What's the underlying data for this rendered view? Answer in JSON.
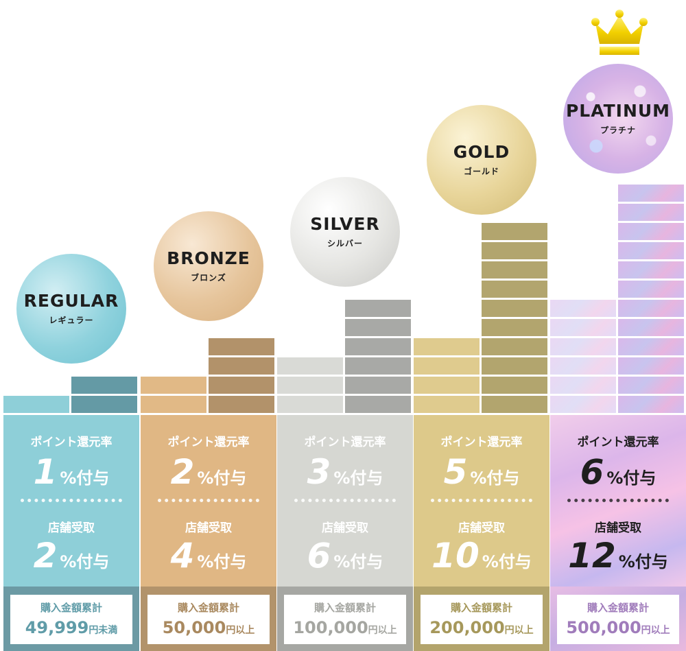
{
  "colors": {
    "regular": "#8ecfd8",
    "bronze": "#e0b784",
    "silver": "#d6d7d2",
    "gold": "#ddc98a",
    "platinum": "#dcb6ea",
    "crown": "#f5d400"
  },
  "tiers": [
    {
      "name": "REGULAR",
      "kana": "レギュラー",
      "point_label": "ポイント還元率",
      "point_rate": "1",
      "point_suffix": "%付与",
      "store_label": "店舗受取",
      "store_rate": "2",
      "store_suffix": "%付与",
      "cumulative_label": "購入金額累計",
      "cumulative_amount": "49,999",
      "cumulative_suffix": "円未満"
    },
    {
      "name": "BRONZE",
      "kana": "ブロンズ",
      "point_label": "ポイント還元率",
      "point_rate": "2",
      "point_suffix": "%付与",
      "store_label": "店舗受取",
      "store_rate": "4",
      "store_suffix": "%付与",
      "cumulative_label": "購入金額累計",
      "cumulative_amount": "50,000",
      "cumulative_suffix": "円以上"
    },
    {
      "name": "SILVER",
      "kana": "シルバー",
      "point_label": "ポイント還元率",
      "point_rate": "3",
      "point_suffix": "%付与",
      "store_label": "店舗受取",
      "store_rate": "6",
      "store_suffix": "%付与",
      "cumulative_label": "購入金額累計",
      "cumulative_amount": "100,000",
      "cumulative_suffix": "円以上"
    },
    {
      "name": "GOLD",
      "kana": "ゴールド",
      "point_label": "ポイント還元率",
      "point_rate": "5",
      "point_suffix": "%付与",
      "store_label": "店舗受取",
      "store_rate": "10",
      "store_suffix": "%付与",
      "cumulative_label": "購入金額累計",
      "cumulative_amount": "200,000",
      "cumulative_suffix": "円以上"
    },
    {
      "name": "PLATINUM",
      "kana": "プラチナ",
      "point_label": "ポイント還元率",
      "point_rate": "6",
      "point_suffix": "%付与",
      "store_label": "店舗受取",
      "store_rate": "12",
      "store_suffix": "%付与",
      "cumulative_label": "購入金額累計",
      "cumulative_amount": "500,000",
      "cumulative_suffix": "円以上"
    }
  ],
  "icons": {
    "top_tier_marker": "crown-icon"
  }
}
